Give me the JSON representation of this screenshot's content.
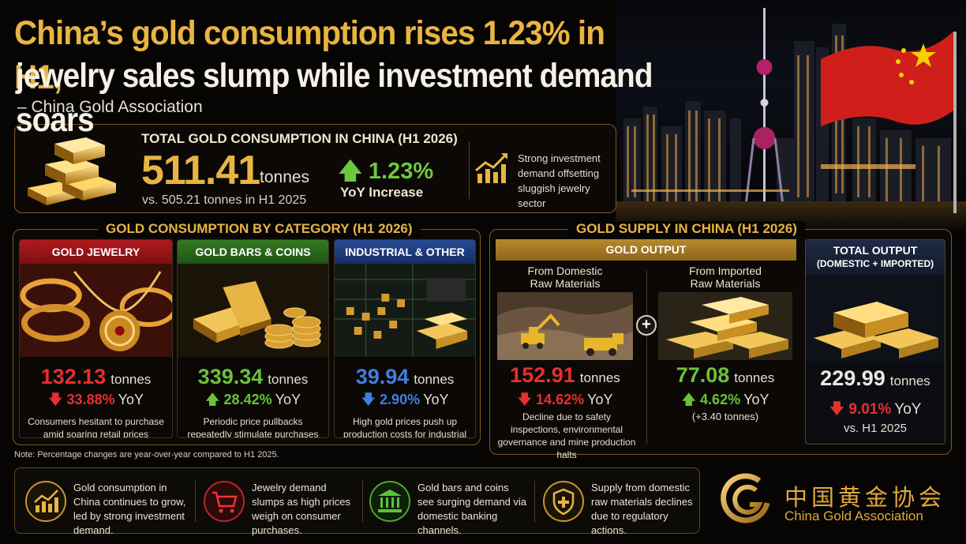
{
  "headline": {
    "line1": "China’s gold consumption rises 1.23% in H1,",
    "line2": "jewelry sales slump while investment demand soars",
    "source": "– China Gold Association"
  },
  "total": {
    "heading": "TOTAL GOLD CONSUMPTION IN CHINA (H1 2026)",
    "value": "511.41",
    "unit": "tonnes",
    "comparison": "vs. 505.21 tonnes in H1 2025",
    "change": "1.23%",
    "change_label": "YoY Increase",
    "note": "Strong investment demand offsetting sluggish jewelry sector",
    "icon": "rising-chart-icon"
  },
  "category_section": {
    "heading": "GOLD CONSUMPTION BY CATEGORY (H1 2026)",
    "cards": [
      {
        "title": "GOLD JEWELRY",
        "value": "132.13",
        "unit": "tonnes",
        "change": "33.88%",
        "direction": "down",
        "yoy": "YoY",
        "desc": "Consumers hesitant to purchase amid soaring retail prices",
        "color": "#a3171b"
      },
      {
        "title": "GOLD BARS & COINS",
        "value": "339.34",
        "unit": "tonnes",
        "change": "28.42%",
        "direction": "up",
        "yoy": "YoY",
        "desc": "Periodic price pullbacks repeatedly stimulate purchases via banking channels",
        "color": "#2f6b1f"
      },
      {
        "title": "INDUSTRIAL & OTHER USES",
        "value": "39.94",
        "unit": "tonnes",
        "change": "2.90%",
        "direction": "down",
        "yoy": "YoY",
        "desc": "High gold prices push up production costs for industrial enterprises",
        "color": "#1d3a78"
      }
    ]
  },
  "supply_section": {
    "heading": "GOLD SUPPLY IN CHINA (H1 2026)",
    "output_heading": "GOLD OUTPUT",
    "domestic": {
      "label_line1": "From Domestic",
      "label_line2": "Raw Materials",
      "value": "152.91",
      "unit": "tonnes",
      "change": "14.62%",
      "direction": "down",
      "yoy": "YoY",
      "desc": "Decline due to safety inspections, environmental governance and mine production halts"
    },
    "imported": {
      "label_line1": "From Imported",
      "label_line2": "Raw Materials",
      "value": "77.08",
      "unit": "tonnes",
      "change": "4.62%",
      "direction": "up",
      "yoy": "YoY",
      "desc": "(+3.40 tonnes)"
    },
    "total": {
      "title": "TOTAL OUTPUT",
      "subtitle": "(DOMESTIC + IMPORTED)",
      "value": "229.99",
      "unit": "tonnes",
      "change": "9.01%",
      "direction": "down",
      "yoy": "YoY",
      "desc": "vs. H1 2025"
    },
    "plus_symbol": "+"
  },
  "note": "Note: Percentage changes are year-over-year compared to H1 2025.",
  "takeaways": [
    {
      "icon": "growth-chart-icon",
      "text": "Gold consumption in China continues to grow, led by strong investment demand."
    },
    {
      "icon": "shopping-cart-icon",
      "text": "Jewelry demand slumps as high prices weigh on consumer purchases."
    },
    {
      "icon": "bank-icon",
      "text": "Gold bars and coins see surging demand via domestic banking channels."
    },
    {
      "icon": "shield-icon",
      "text": "Supply from domestic raw materials declines due to regulatory actions."
    }
  ],
  "logo": {
    "cn": "中国黄金协会",
    "en": "China Gold Association"
  }
}
